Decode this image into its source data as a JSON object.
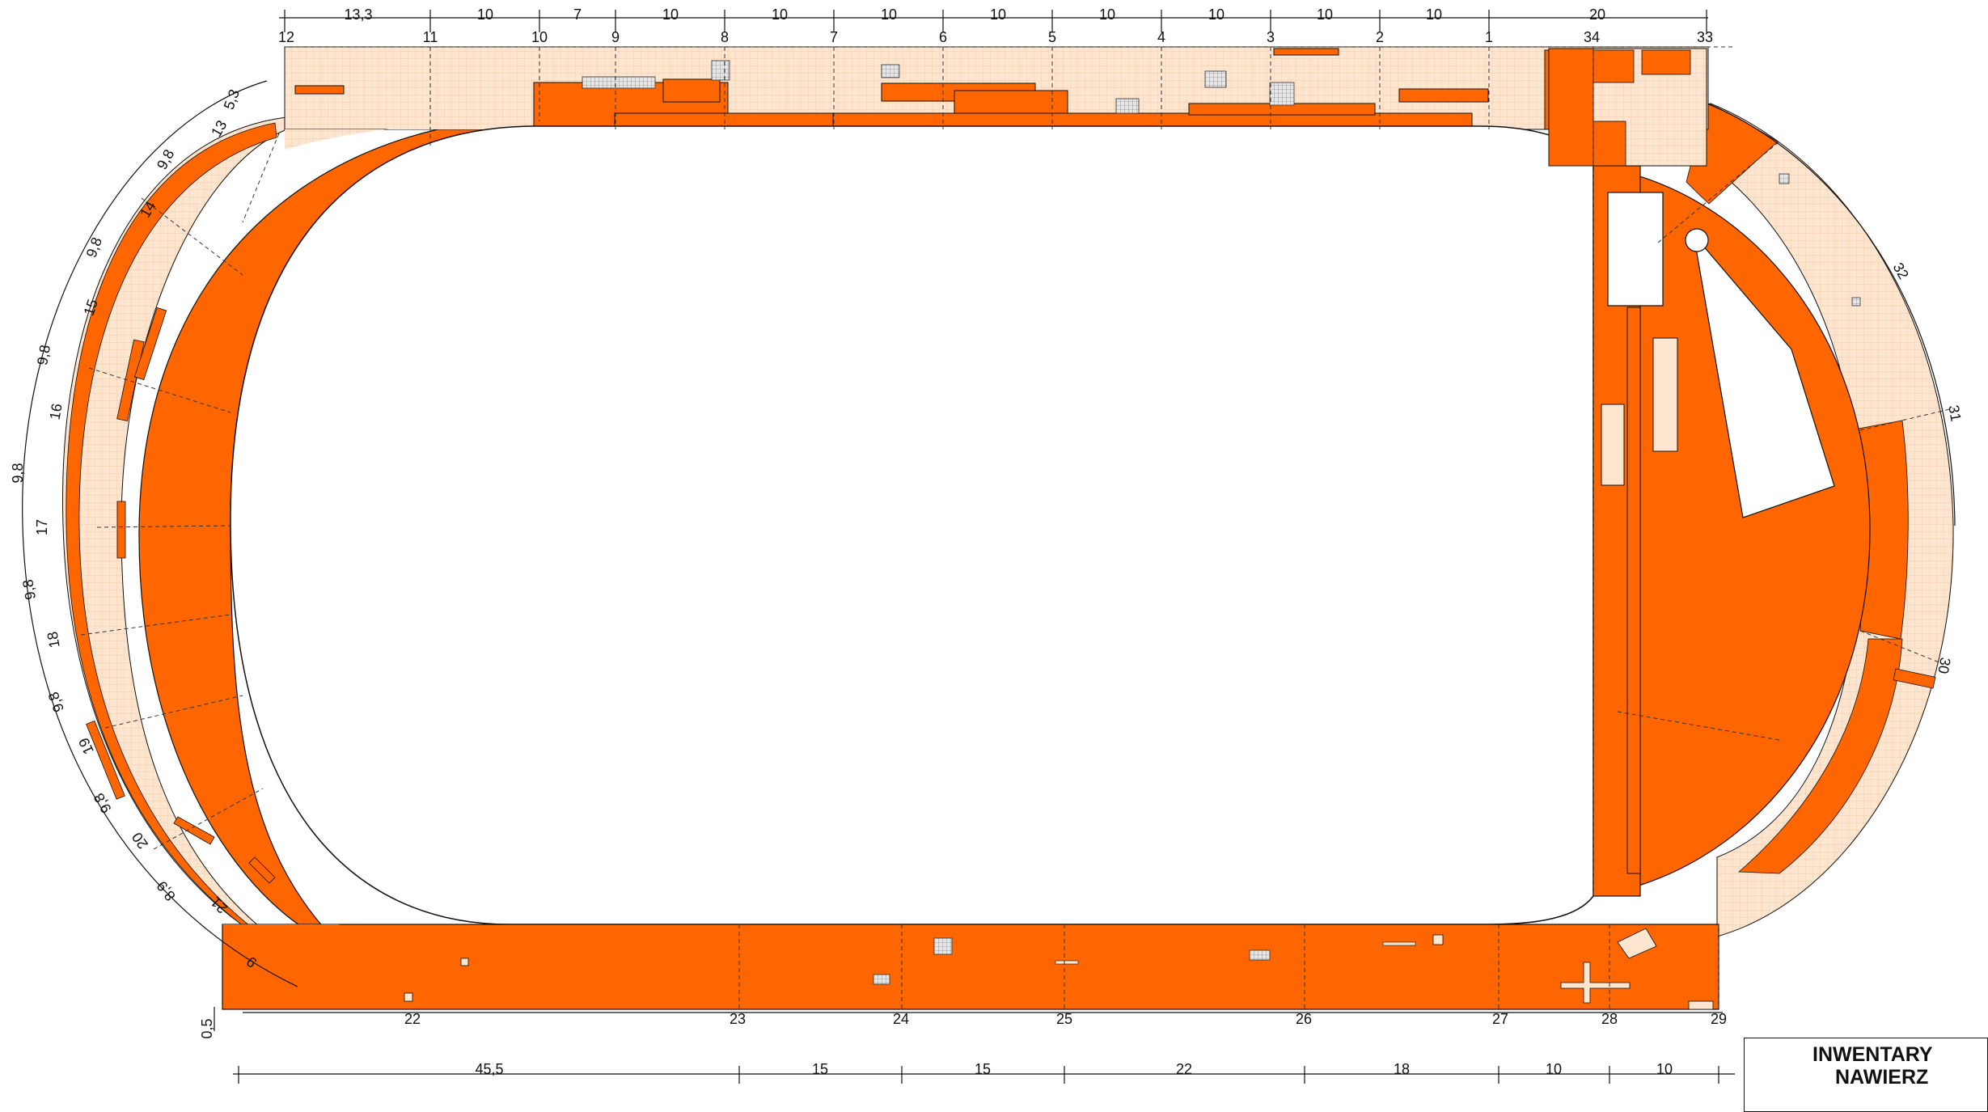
{
  "colors": {
    "damaged": "#ff6600",
    "intact": "#fde5cf",
    "grid": "#f5c49a",
    "inner": "#ffffff",
    "line": "#111111"
  },
  "top_dimensions": {
    "segments": [
      "13,3",
      "10",
      "7",
      "10",
      "10",
      "10",
      "10",
      "10",
      "10",
      "10",
      "10",
      "20"
    ],
    "points": [
      "12",
      "11",
      "10",
      "9",
      "8",
      "7",
      "6",
      "5",
      "4",
      "3",
      "2",
      "1",
      "34",
      "33"
    ]
  },
  "left_arc": {
    "segments": [
      "5,3",
      "9,8",
      "9,8",
      "9,8",
      "9,8",
      "9,8",
      "9,8",
      "9,8",
      "8,9",
      "9"
    ],
    "points": [
      "13",
      "14",
      "15",
      "16",
      "17",
      "18",
      "19",
      "20",
      "21"
    ]
  },
  "right_arc": {
    "points": [
      "32",
      "31",
      "30"
    ]
  },
  "bottom_points": [
    "22",
    "23",
    "24",
    "25",
    "26",
    "27",
    "28",
    "29"
  ],
  "bottom_dimensions": [
    "45,5",
    "15",
    "15",
    "22",
    "18",
    "10",
    "10"
  ],
  "offset_dim": "0,5",
  "title_block": {
    "line1": "INWENTARY",
    "line2": "NAWIERZ"
  }
}
